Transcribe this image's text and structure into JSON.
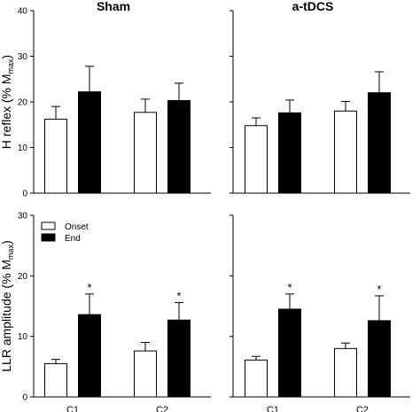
{
  "chart_data": [
    {
      "type": "bar",
      "panel": "top-left",
      "title": "Sham",
      "ylabel_main": "H reflex (% M",
      "ylabel_sub": "max",
      "ylabel_end": ")",
      "ylim": [
        0,
        40
      ],
      "yticks": [
        "0",
        "10",
        "20",
        "30",
        "40"
      ],
      "categories": [
        "C1",
        "C2"
      ],
      "show_xticklabels": false,
      "series": [
        {
          "name": "Onset",
          "values": [
            16.2,
            17.7
          ],
          "errors": [
            2.8,
            2.9
          ],
          "color": "#ffffff"
        },
        {
          "name": "End",
          "values": [
            22.2,
            20.3
          ],
          "errors": [
            5.6,
            3.8
          ],
          "color": "#000000"
        }
      ],
      "significance": [
        [
          false,
          false
        ],
        [
          false,
          false
        ]
      ]
    },
    {
      "type": "bar",
      "panel": "top-right",
      "title": "a-tDCS",
      "ylim": [
        0,
        40
      ],
      "categories": [
        "C1",
        "C2"
      ],
      "show_xticklabels": false,
      "series": [
        {
          "name": "Onset",
          "values": [
            14.8,
            18.0
          ],
          "errors": [
            1.7,
            2.1
          ],
          "color": "#ffffff"
        },
        {
          "name": "End",
          "values": [
            17.6,
            22.0
          ],
          "errors": [
            2.8,
            4.6
          ],
          "color": "#000000"
        }
      ],
      "significance": [
        [
          false,
          false
        ],
        [
          false,
          false
        ]
      ]
    },
    {
      "type": "bar",
      "panel": "bottom-left",
      "ylabel_main": "LLR amplitude (% M",
      "ylabel_sub": "max",
      "ylabel_end": ")",
      "ylim": [
        0,
        30
      ],
      "yticks": [
        "0",
        "10",
        "20",
        "30"
      ],
      "categories": [
        "C1",
        "C2"
      ],
      "show_xticklabels": true,
      "legend": {
        "entries": [
          "Onset",
          "End"
        ],
        "placement": "top-left"
      },
      "series": [
        {
          "name": "Onset",
          "values": [
            5.5,
            7.6
          ],
          "errors": [
            0.7,
            1.4
          ],
          "color": "#ffffff"
        },
        {
          "name": "End",
          "values": [
            13.6,
            12.7
          ],
          "errors": [
            3.4,
            2.9
          ],
          "color": "#000000"
        }
      ],
      "significance": [
        [
          false,
          false
        ],
        [
          true,
          true
        ]
      ],
      "sig_marker": "*"
    },
    {
      "type": "bar",
      "panel": "bottom-right",
      "ylim": [
        0,
        30
      ],
      "categories": [
        "C1",
        "C2"
      ],
      "show_xticklabels": true,
      "series": [
        {
          "name": "Onset",
          "values": [
            6.1,
            8.0
          ],
          "errors": [
            0.6,
            0.9
          ],
          "color": "#ffffff"
        },
        {
          "name": "End",
          "values": [
            14.5,
            12.6
          ],
          "errors": [
            2.5,
            4.1
          ],
          "color": "#000000"
        }
      ],
      "significance": [
        [
          false,
          false
        ],
        [
          true,
          true
        ]
      ],
      "sig_marker": "*"
    }
  ]
}
